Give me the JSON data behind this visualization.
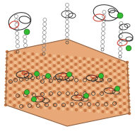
{
  "fig_width": 1.91,
  "fig_height": 1.89,
  "dpi": 100,
  "background_color": "#ffffff",
  "surface_bg_color": "#e8a878",
  "atom_color": "#c87844",
  "atom_light_color": "#f0c090",
  "surface_shadow_color": "#b06030",
  "green_atom_color": "#33bb33",
  "ring_color": "#222222",
  "chain_color": "#666666",
  "red_color": "#cc3322",
  "gray_chain_color": "#888888",
  "dark_chain_color": "#333333"
}
